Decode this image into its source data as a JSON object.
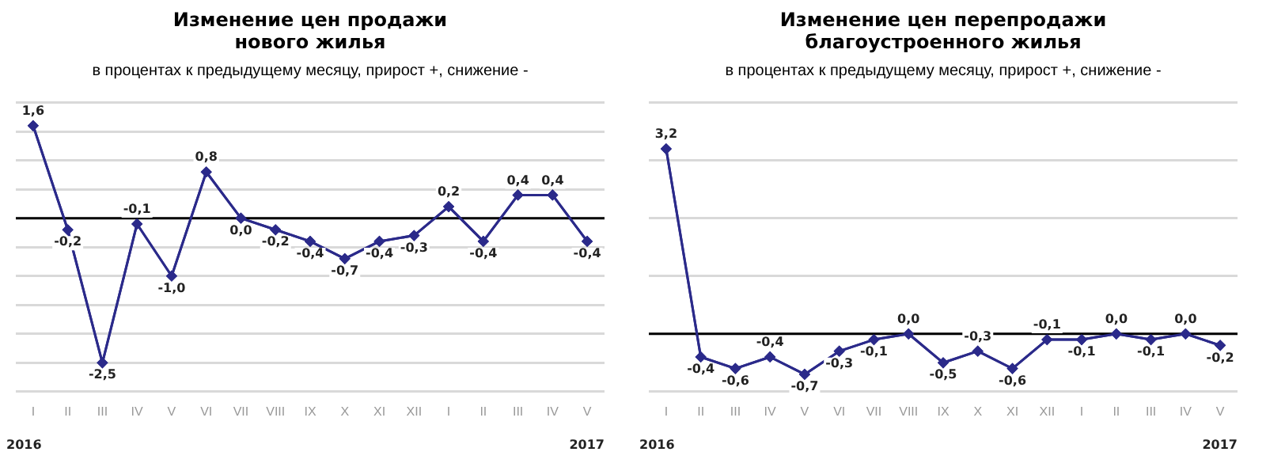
{
  "chart_data": [
    {
      "type": "line",
      "title": "Изменение цен продажи\nнового жилья",
      "subtitle": "в процентах к предыдущему месяцу, прирост +, снижение -",
      "categories": [
        "I",
        "II",
        "III",
        "IV",
        "V",
        "VI",
        "VII",
        "VIII",
        "IX",
        "X",
        "XI",
        "XII",
        "I",
        "II",
        "III",
        "IV",
        "V"
      ],
      "series": [
        {
          "color": "#2b2a8a",
          "values": [
            1.6,
            -0.2,
            -2.5,
            -0.1,
            -1.0,
            0.8,
            0.0,
            -0.2,
            -0.4,
            -0.7,
            -0.4,
            -0.3,
            0.2,
            -0.4,
            0.4,
            0.4,
            -0.4
          ],
          "value_labels": [
            "1,6",
            "-0,2",
            "-2,5",
            "-0,1",
            "-1,0",
            "0,8",
            "0,0",
            "-0,2",
            "-0,4",
            "-0,7",
            "-0,4",
            "-0,3",
            "0,2",
            "-0,4",
            "0,4",
            "0,4",
            "-0,4"
          ]
        }
      ],
      "ylim": [
        -3,
        2
      ],
      "yticks": [
        {
          "value": -3,
          "label": null
        },
        {
          "value": -2.5,
          "label": null
        },
        {
          "value": -2,
          "label": null
        },
        {
          "value": -1.5,
          "label": null
        },
        {
          "value": -1,
          "label": null
        },
        {
          "value": -0.5,
          "label": null
        },
        {
          "value": 0,
          "label": null
        },
        {
          "value": 0.5,
          "label": null
        },
        {
          "value": 1,
          "label": null
        },
        {
          "value": 1.5,
          "label": null
        },
        {
          "value": 2,
          "label": null
        }
      ],
      "tick_labels": "x",
      "grid": "y",
      "legend": false,
      "marker": "diamond",
      "line_style": "solid",
      "ref_lines": [
        {
          "axis": "y",
          "value": 0,
          "color": "#000000"
        }
      ],
      "annotations": [
        "2016",
        "2017"
      ]
    },
    {
      "type": "line",
      "title": "Изменение цен перепродажи\nблагоустроенного жилья",
      "subtitle": "в процентах к предыдущему месяцу, прирост +, снижение -",
      "categories": [
        "I",
        "II",
        "III",
        "IV",
        "V",
        "VI",
        "VII",
        "VIII",
        "IX",
        "X",
        "XI",
        "XII",
        "I",
        "II",
        "III",
        "IV",
        "V"
      ],
      "series": [
        {
          "color": "#2b2a8a",
          "values": [
            3.2,
            -0.4,
            -0.6,
            -0.4,
            -0.7,
            -0.3,
            -0.1,
            0.0,
            -0.5,
            -0.3,
            -0.6,
            -0.1,
            -0.1,
            0.0,
            -0.1,
            0.0,
            -0.2
          ],
          "value_labels": [
            "3,2",
            "-0,4",
            "-0,6",
            "-0,4",
            "-0,7",
            "-0,3",
            "-0,1",
            "0,0",
            "-0,5",
            "-0,3",
            "-0,6",
            "-0,1",
            "-0,1",
            "0,0",
            "-0,1",
            "0,0",
            "-0,2"
          ]
        }
      ],
      "ylim": [
        -1,
        4
      ],
      "yticks": [
        {
          "value": -1,
          "label": null
        },
        {
          "value": 0,
          "label": null
        },
        {
          "value": 1,
          "label": null
        },
        {
          "value": 2,
          "label": null
        },
        {
          "value": 3,
          "label": null
        },
        {
          "value": 4,
          "label": null
        }
      ],
      "tick_labels": "x",
      "grid": "y",
      "legend": false,
      "marker": "diamond",
      "line_style": "solid",
      "ref_lines": [
        {
          "axis": "y",
          "value": 0,
          "color": "#000000"
        }
      ],
      "annotations": [
        "2016",
        "2017"
      ]
    }
  ]
}
